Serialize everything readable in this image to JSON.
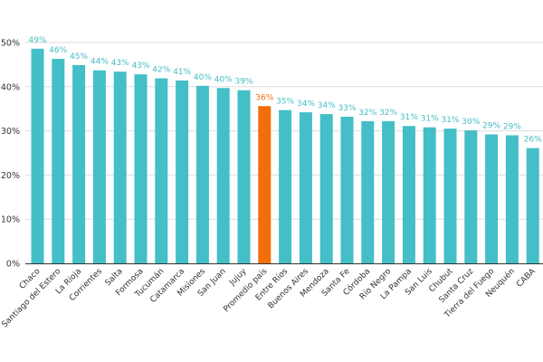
{
  "chart_data": {
    "type": "bar",
    "title": "",
    "xlabel": "",
    "ylabel": "",
    "ylim": [
      0,
      50
    ],
    "yticks": [
      "0%",
      "10%",
      "20%",
      "30%",
      "40%",
      "50%"
    ],
    "grid": true,
    "colors": {
      "default": "#44bec7",
      "highlight": "#f36d0a",
      "highlight_label": "#f36d0a",
      "label": "#44bec7"
    },
    "highlight_category": "Promedio país",
    "categories": [
      "Chaco",
      "Santiago del Estero",
      "La Rioja",
      "Corrientes",
      "Salta",
      "Formosa",
      "Tucumán",
      "Catamarca",
      "Misiones",
      "San Juan",
      "Jujuy",
      "Promedio país",
      "Entre Ríos",
      "Buenos Aires",
      "Mendoza",
      "Santa Fe",
      "Córdoba",
      "Río Negro",
      "La Pampa",
      "San Luis",
      "Chubut",
      "Santa Cruz",
      "Tierra del Fuego",
      "Neuquén",
      "CABA"
    ],
    "values": [
      48.6,
      46.3,
      44.9,
      43.7,
      43.4,
      42.8,
      41.9,
      41.4,
      40.2,
      39.7,
      39.2,
      35.6,
      34.7,
      34.2,
      33.8,
      33.2,
      32.2,
      32.2,
      31.1,
      30.8,
      30.5,
      30.1,
      29.2,
      29.0,
      26.1
    ],
    "labels": [
      "49%",
      "46%",
      "45%",
      "44%",
      "43%",
      "43%",
      "42%",
      "41%",
      "40%",
      "40%",
      "39%",
      "36%",
      "35%",
      "34%",
      "34%",
      "33%",
      "32%",
      "32%",
      "31%",
      "31%",
      "31%",
      "30%",
      "29%",
      "29%",
      "26%"
    ]
  }
}
